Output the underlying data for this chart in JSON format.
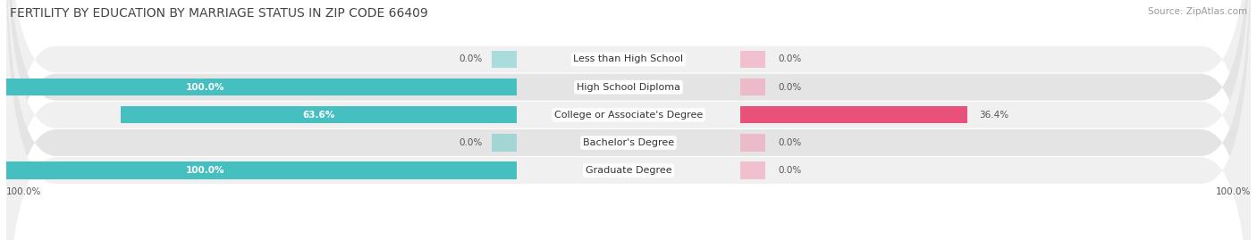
{
  "title": "FERTILITY BY EDUCATION BY MARRIAGE STATUS IN ZIP CODE 66409",
  "source": "Source: ZipAtlas.com",
  "categories": [
    "Less than High School",
    "High School Diploma",
    "College or Associate's Degree",
    "Bachelor's Degree",
    "Graduate Degree"
  ],
  "married_pct": [
    0.0,
    100.0,
    63.6,
    0.0,
    100.0
  ],
  "unmarried_pct": [
    0.0,
    0.0,
    36.4,
    0.0,
    0.0
  ],
  "married_color": "#45bfbf",
  "unmarried_color_strong": "#e8527a",
  "unmarried_color_weak": "#f0a0b8",
  "bar_bg_color_light": "#f0f0f0",
  "bar_bg_color_dark": "#e4e4e4",
  "background_color": "#ffffff",
  "title_fontsize": 10,
  "tick_label_fontsize": 8,
  "bar_height": 0.62,
  "xlim": 100
}
